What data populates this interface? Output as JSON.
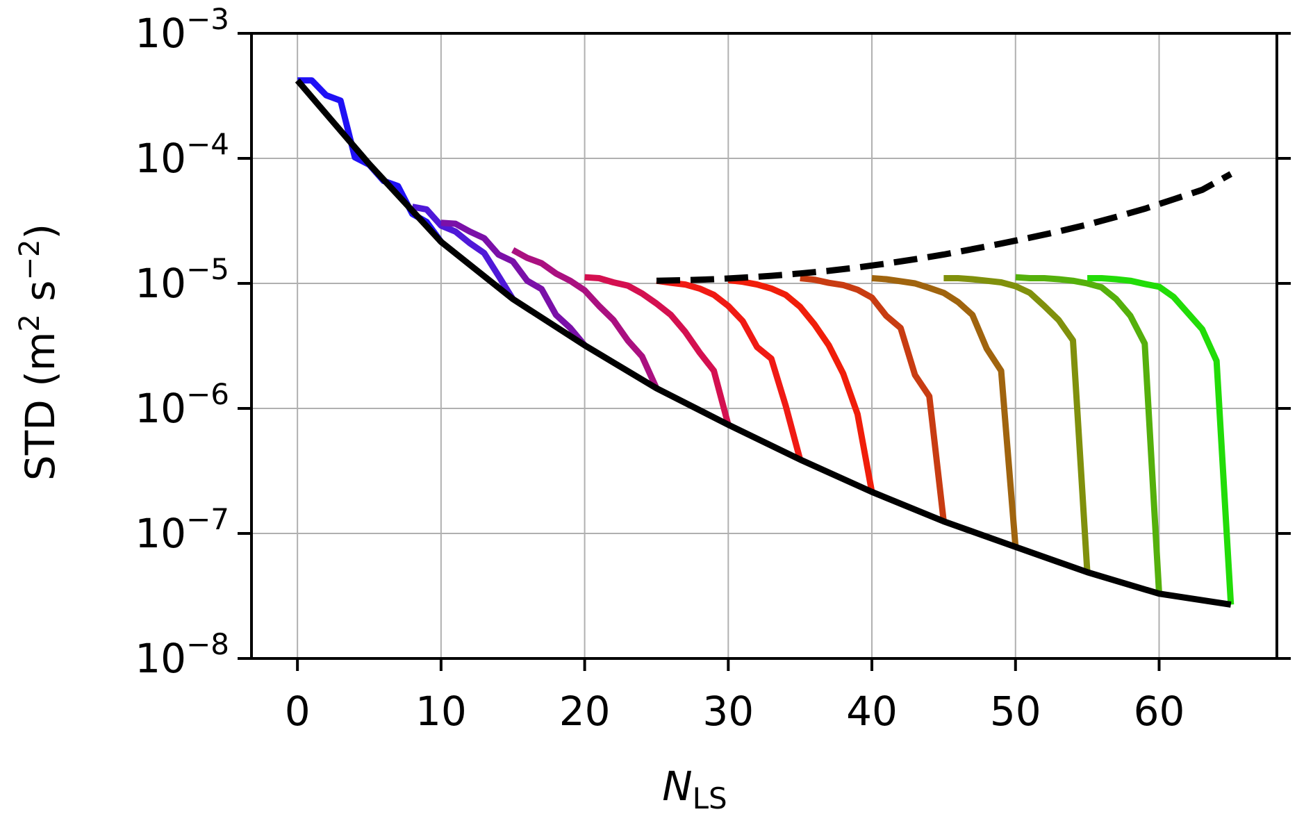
{
  "chart_data": {
    "type": "line",
    "xlabel": {
      "main": "N",
      "sub": "LS"
    },
    "ylabel": {
      "prefix": "STD (m",
      "sup1": "2",
      "mid": " s",
      "sup2": "−2",
      "suffix": ")"
    },
    "xlim": [
      -3.2,
      68.2
    ],
    "ylim": [
      1e-08,
      0.001
    ],
    "yscale": "log",
    "grid": true,
    "xticks": [
      {
        "value": 0,
        "label": "0"
      },
      {
        "value": 10,
        "label": "10"
      },
      {
        "value": 20,
        "label": "20"
      },
      {
        "value": 30,
        "label": "30"
      },
      {
        "value": 40,
        "label": "40"
      },
      {
        "value": 50,
        "label": "50"
      },
      {
        "value": 60,
        "label": "60"
      }
    ],
    "yticks": [
      {
        "value": 0.001,
        "base": "10",
        "exp": "−3"
      },
      {
        "value": 0.0001,
        "base": "10",
        "exp": "−4"
      },
      {
        "value": 1e-05,
        "base": "10",
        "exp": "−5"
      },
      {
        "value": 1e-06,
        "base": "10",
        "exp": "−6"
      },
      {
        "value": 1e-07,
        "base": "10",
        "exp": "−7"
      },
      {
        "value": 1e-08,
        "base": "10",
        "exp": "−8"
      }
    ],
    "plateau": {
      "x": [
        0,
        1,
        2,
        3,
        4,
        5,
        6,
        7,
        8,
        9,
        10,
        11,
        12,
        13,
        14,
        15,
        16,
        17,
        18,
        19,
        20,
        21,
        22,
        23,
        24,
        25
      ],
      "y": [
        0.00042,
        0.00042,
        0.00032,
        0.00029,
        0.000102,
        8.9e-05,
        6.6e-05,
        6e-05,
        4.1e-05,
        3.9e-05,
        3.05e-05,
        3.1e-05,
        2.65e-05,
        2.6e-05,
        1.85e-05,
        1.9e-05,
        1.6e-05,
        1.55e-05,
        1.25e-05,
        1.3e-05,
        1.12e-05,
        1.18e-05,
        1.08e-05,
        1.1e-05,
        1.02e-05,
        1.05e-05
      ]
    },
    "envelope": {
      "x": [
        0,
        5,
        10,
        15,
        20,
        25,
        30,
        35,
        40,
        45,
        50,
        55,
        60,
        65
      ],
      "y": [
        0.00042,
        9e-05,
        2.15e-05,
        7.5e-06,
        3.2e-06,
        1.45e-06,
        7.4e-07,
        3.9e-07,
        2.15e-07,
        1.25e-07,
        7.8e-08,
        4.9e-08,
        3.3e-08,
        2.7e-08
      ]
    },
    "dashed": {
      "color": "#000000",
      "x": [
        25,
        27,
        29,
        31,
        33,
        35,
        37,
        39,
        41,
        43,
        45,
        47,
        49,
        51,
        53,
        55,
        57,
        59,
        61,
        63,
        65
      ],
      "y": [
        1.05e-05,
        1.06e-05,
        1.08e-05,
        1.11e-05,
        1.15e-05,
        1.2e-05,
        1.26e-05,
        1.34e-05,
        1.44e-05,
        1.56e-05,
        1.7e-05,
        1.88e-05,
        2.08e-05,
        2.32e-05,
        2.6e-05,
        2.95e-05,
        3.4e-05,
        3.95e-05,
        4.7e-05,
        5.6e-05,
        7.5e-05
      ]
    },
    "truncated_series": [
      {
        "color": "#1f10f5",
        "x": [
          0,
          1,
          2,
          3,
          4,
          5,
          6,
          7,
          8,
          9,
          10
        ],
        "y": [
          0.00042,
          0.00042,
          0.00032,
          0.00029,
          0.000102,
          8.9e-05,
          6.6e-05,
          6e-05,
          3.6e-05,
          3.1e-05,
          2.15e-05
        ]
      },
      {
        "color": "#4f18d8",
        "x": [
          8,
          9,
          10,
          11,
          12,
          13,
          14,
          15
        ],
        "y": [
          4.1e-05,
          3.9e-05,
          2.9e-05,
          2.6e-05,
          2.1e-05,
          1.75e-05,
          1.15e-05,
          7.5e-06
        ]
      },
      {
        "color": "#7a10a8",
        "x": [
          10,
          11,
          12,
          13,
          14,
          15,
          16,
          17,
          18,
          19,
          20
        ],
        "y": [
          3.05e-05,
          3e-05,
          2.6e-05,
          2.3e-05,
          1.7e-05,
          1.5e-05,
          1.05e-05,
          9e-06,
          5.6e-06,
          4.4e-06,
          3.2e-06
        ]
      },
      {
        "color": "#aa1080",
        "x": [
          15,
          16,
          17,
          18,
          19,
          20,
          21,
          22,
          23,
          24,
          25
        ],
        "y": [
          1.85e-05,
          1.6e-05,
          1.45e-05,
          1.2e-05,
          1.05e-05,
          8.8e-06,
          6.6e-06,
          5.1e-06,
          3.5e-06,
          2.6e-06,
          1.45e-06
        ]
      },
      {
        "color": "#d41050",
        "x": [
          20,
          21,
          22,
          23,
          24,
          25,
          26,
          27,
          28,
          29,
          30
        ],
        "y": [
          1.12e-05,
          1.1e-05,
          1.02e-05,
          9.6e-06,
          8.3e-06,
          6.9e-06,
          5.6e-06,
          4.1e-06,
          2.8e-06,
          2e-06,
          7.4e-07
        ]
      },
      {
        "color": "#f01a14",
        "x": [
          25,
          26,
          27,
          28,
          29,
          30,
          31,
          32,
          33,
          34,
          35
        ],
        "y": [
          1.05e-05,
          1.01e-05,
          9.8e-06,
          9.1e-06,
          8.1e-06,
          6.6e-06,
          5e-06,
          3.1e-06,
          2.5e-06,
          1.05e-06,
          3.9e-07
        ]
      },
      {
        "color": "#f01e0a",
        "x": [
          30,
          31,
          32,
          33,
          34,
          35,
          36,
          37,
          38,
          39,
          40
        ],
        "y": [
          1.06e-05,
          1.03e-05,
          9.8e-06,
          9.1e-06,
          8.1e-06,
          6.5e-06,
          4.7e-06,
          3.2e-06,
          1.9e-06,
          9e-07,
          2.15e-07
        ]
      },
      {
        "color": "#c83c12",
        "x": [
          35,
          36,
          37,
          38,
          39,
          40,
          41,
          42,
          43,
          44,
          45
        ],
        "y": [
          1.1e-05,
          1.07e-05,
          1.01e-05,
          9.7e-06,
          8.9e-06,
          7.7e-06,
          5.5e-06,
          4.4e-06,
          1.85e-06,
          1.25e-06,
          1.25e-07
        ]
      },
      {
        "color": "#a0640e",
        "x": [
          40,
          41,
          42,
          43,
          44,
          45,
          46,
          47,
          48,
          49,
          50
        ],
        "y": [
          1.1e-05,
          1.08e-05,
          1.04e-05,
          1e-05,
          9.2e-06,
          8.4e-06,
          7.1e-06,
          5.6e-06,
          3e-06,
          2e-06,
          7.8e-08
        ]
      },
      {
        "color": "#80900c",
        "x": [
          45,
          46,
          47,
          48,
          49,
          50,
          51,
          52,
          53,
          54,
          55
        ],
        "y": [
          1.1e-05,
          1.1e-05,
          1.08e-05,
          1.05e-05,
          1.02e-05,
          9.5e-06,
          8.4e-06,
          6.6e-06,
          5.1e-06,
          3.5e-06,
          4.9e-08
        ]
      },
      {
        "color": "#55b00c",
        "x": [
          50,
          51,
          52,
          53,
          54,
          55,
          56,
          57,
          58,
          59,
          60
        ],
        "y": [
          1.12e-05,
          1.1e-05,
          1.1e-05,
          1.08e-05,
          1.05e-05,
          1e-05,
          9.3e-06,
          7.5e-06,
          5.5e-06,
          3.3e-06,
          3.3e-08
        ]
      },
      {
        "color": "#22dc08",
        "x": [
          55,
          56,
          57,
          58,
          59,
          60,
          61,
          62,
          63,
          64,
          65
        ],
        "y": [
          1.1e-05,
          1.1e-05,
          1.08e-05,
          1.05e-05,
          9.9e-06,
          9.4e-06,
          7.8e-06,
          5.8e-06,
          4.3e-06,
          2.4e-06,
          2.7e-08
        ]
      }
    ]
  }
}
